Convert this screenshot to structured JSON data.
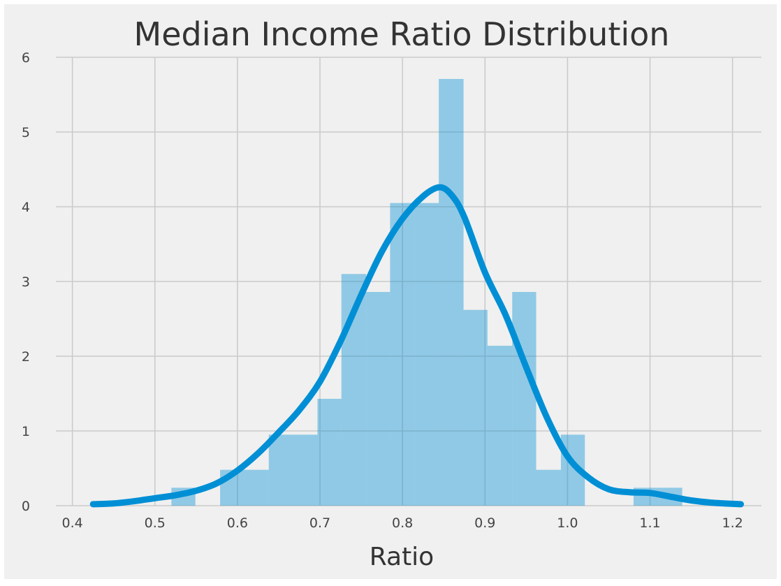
{
  "chart_data": {
    "type": "bar",
    "title": "Median Income Ratio Distribution",
    "xlabel": "Ratio",
    "ylabel": "",
    "xlim": [
      0.38,
      1.235
    ],
    "ylim": [
      0,
      6
    ],
    "xticks": [
      0.4,
      0.5,
      0.6,
      0.7,
      0.8,
      0.9,
      1.0,
      1.1,
      1.2
    ],
    "xtick_labels": [
      "0.4",
      "0.5",
      "0.6",
      "0.7",
      "0.8",
      "0.9",
      "1.0",
      "1.1",
      "1.2"
    ],
    "yticks": [
      0,
      1,
      2,
      3,
      4,
      5,
      6
    ],
    "ytick_labels": [
      "0",
      "1",
      "2",
      "3",
      "4",
      "5",
      "6"
    ],
    "grid": true,
    "histogram": {
      "bin_edges": [
        0.52,
        0.549,
        0.579,
        0.608,
        0.638,
        0.667,
        0.697,
        0.726,
        0.756,
        0.785,
        0.815,
        0.844,
        0.874,
        0.903,
        0.933,
        0.962,
        0.992,
        1.021,
        1.051,
        1.08,
        1.11,
        1.139
      ],
      "density": [
        0.24,
        0.0,
        0.48,
        0.48,
        0.95,
        0.95,
        1.43,
        3.1,
        2.86,
        4.05,
        4.05,
        5.71,
        2.62,
        2.14,
        2.86,
        0.48,
        0.95,
        0.0,
        0.0,
        0.24,
        0.24
      ],
      "color": "#008fd5",
      "alpha": 0.4
    },
    "kde": {
      "x": [
        0.425,
        0.45,
        0.475,
        0.5,
        0.525,
        0.55,
        0.575,
        0.6,
        0.625,
        0.65,
        0.675,
        0.7,
        0.725,
        0.75,
        0.775,
        0.8,
        0.825,
        0.845,
        0.86,
        0.875,
        0.9,
        0.925,
        0.95,
        0.975,
        1.0,
        1.025,
        1.05,
        1.075,
        1.1,
        1.125,
        1.15,
        1.175,
        1.21
      ],
      "y": [
        0.02,
        0.03,
        0.06,
        0.1,
        0.14,
        0.2,
        0.3,
        0.47,
        0.7,
        0.98,
        1.28,
        1.66,
        2.2,
        2.82,
        3.4,
        3.84,
        4.14,
        4.26,
        4.15,
        3.86,
        3.12,
        2.55,
        1.85,
        1.18,
        0.66,
        0.38,
        0.22,
        0.18,
        0.17,
        0.12,
        0.07,
        0.04,
        0.02
      ],
      "color": "#008fd5"
    }
  },
  "style": {
    "background": "#f0f0f0",
    "grid_color": "#cbcbcb"
  }
}
